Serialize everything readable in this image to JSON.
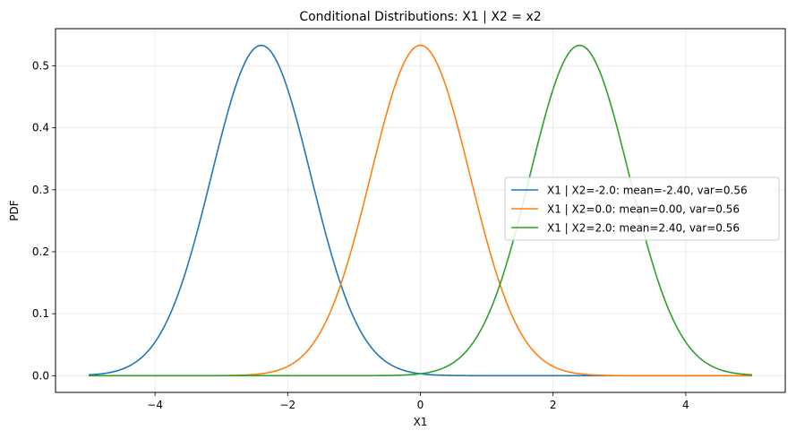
{
  "chart_data": {
    "type": "line",
    "title": "Conditional Distributions: X1 | X2 = x2",
    "xlabel": "X1",
    "ylabel": "PDF",
    "xlim": [
      -5.5,
      5.5
    ],
    "ylim": [
      -0.027,
      0.56
    ],
    "x_range": [
      -5,
      5
    ],
    "xticks": [
      -4,
      -2,
      0,
      2,
      4
    ],
    "xtick_labels": [
      "−4",
      "−2",
      "0",
      "2",
      "4"
    ],
    "yticks": [
      0.0,
      0.1,
      0.2,
      0.3,
      0.4,
      0.5
    ],
    "ytick_labels": [
      "0.0",
      "0.1",
      "0.2",
      "0.3",
      "0.4",
      "0.5"
    ],
    "grid": true,
    "legend_position": "center-right",
    "series": [
      {
        "name": "X1 | X2=-2.0: mean=-2.40, var=0.56",
        "mean": -2.4,
        "var": 0.56,
        "color": "#1f77b4"
      },
      {
        "name": "X1 | X2=0.0: mean=0.00, var=0.56",
        "mean": 0.0,
        "var": 0.56,
        "color": "#ff7f0e"
      },
      {
        "name": "X1 | X2=2.0: mean=2.40, var=0.56",
        "mean": 2.4,
        "var": 0.56,
        "color": "#2ca02c"
      }
    ]
  }
}
